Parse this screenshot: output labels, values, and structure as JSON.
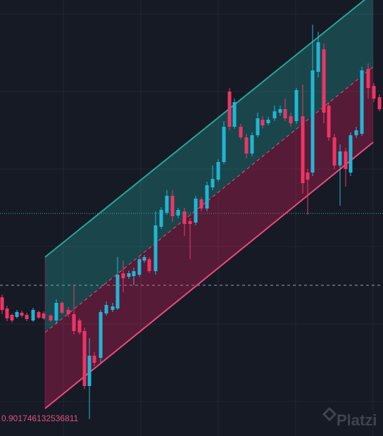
{
  "price_label": "0.901746132536811",
  "watermark": "Platzi"
}
